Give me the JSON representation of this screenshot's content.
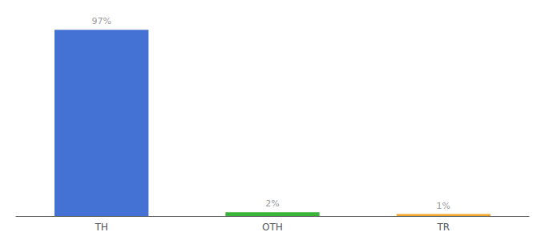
{
  "chart_data": {
    "type": "bar",
    "categories": [
      "TH",
      "OTH",
      "TR"
    ],
    "values": [
      97,
      2,
      1
    ],
    "value_labels": [
      "97%",
      "2%",
      "1%"
    ],
    "colors": [
      "#4472d4",
      "#3ab53a",
      "#f0a830"
    ],
    "ylim": [
      0,
      100
    ],
    "grid": false,
    "data_labels": true,
    "tick_labels": "x"
  }
}
